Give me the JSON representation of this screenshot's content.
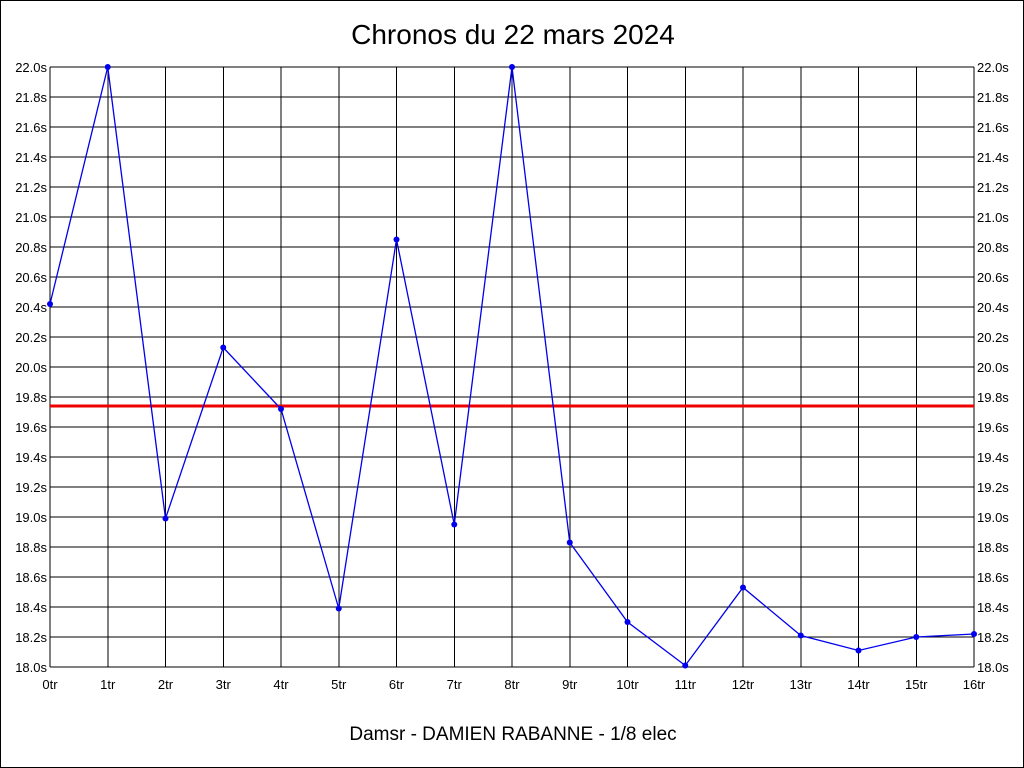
{
  "chart_data": {
    "type": "line",
    "title": "Chronos du 22 mars 2024",
    "footer": "Damsr - DAMIEN RABANNE - 1/8 elec",
    "xlabel": "",
    "ylabel": "",
    "categories": [
      "0tr",
      "1tr",
      "2tr",
      "3tr",
      "4tr",
      "5tr",
      "6tr",
      "7tr",
      "8tr",
      "9tr",
      "10tr",
      "11tr",
      "12tr",
      "13tr",
      "14tr",
      "15tr",
      "16tr"
    ],
    "y_ticks": [
      "18.0s",
      "18.2s",
      "18.4s",
      "18.6s",
      "18.8s",
      "19.0s",
      "19.2s",
      "19.4s",
      "19.6s",
      "19.8s",
      "20.0s",
      "20.2s",
      "20.4s",
      "20.6s",
      "20.8s",
      "21.0s",
      "21.2s",
      "21.4s",
      "21.6s",
      "21.8s",
      "22.0s"
    ],
    "ylim": [
      18.0,
      22.0
    ],
    "series": [
      {
        "color": "#0000ee",
        "values": [
          20.42,
          22.0,
          18.99,
          20.13,
          19.72,
          18.39,
          20.85,
          18.95,
          22.0,
          18.83,
          18.3,
          18.01,
          18.53,
          18.21,
          18.11,
          18.2,
          18.22
        ]
      }
    ],
    "reference_line": {
      "value": 19.74,
      "color": "#ee0000"
    },
    "grid": true,
    "y_axis_both_sides": true
  }
}
